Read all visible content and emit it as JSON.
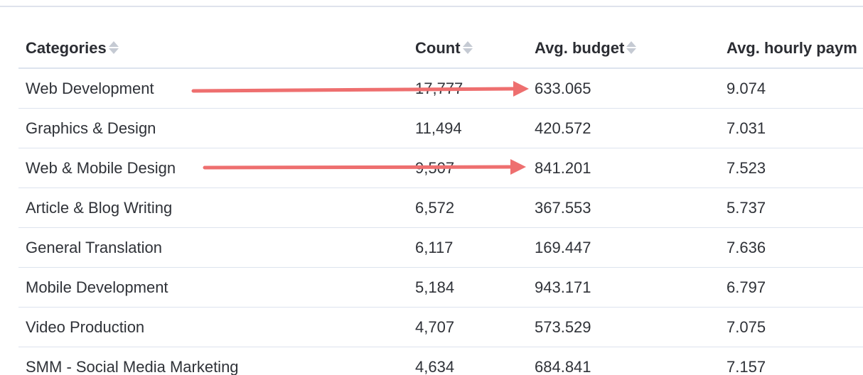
{
  "table": {
    "headers": {
      "categories": "Categories",
      "count": "Count",
      "avg_budget": "Avg. budget",
      "avg_hourly": "Avg. hourly paym"
    },
    "rows": [
      {
        "category": "Web Development",
        "count": "17,777",
        "avg_budget": "633.065",
        "avg_hourly": "9.074"
      },
      {
        "category": "Graphics & Design",
        "count": "11,494",
        "avg_budget": "420.572",
        "avg_hourly": "7.031"
      },
      {
        "category": "Web & Mobile Design",
        "count": "9,507",
        "avg_budget": "841.201",
        "avg_hourly": "7.523"
      },
      {
        "category": "Article & Blog Writing",
        "count": "6,572",
        "avg_budget": "367.553",
        "avg_hourly": "5.737"
      },
      {
        "category": "General Translation",
        "count": "6,117",
        "avg_budget": "169.447",
        "avg_hourly": "7.636"
      },
      {
        "category": "Mobile Development",
        "count": "5,184",
        "avg_budget": "943.171",
        "avg_hourly": "6.797"
      },
      {
        "category": "Video Production",
        "count": "4,707",
        "avg_budget": "573.529",
        "avg_hourly": "7.075"
      },
      {
        "category": "SMM - Social Media Marketing",
        "count": "4,634",
        "avg_budget": "684.841",
        "avg_hourly": "7.157"
      }
    ]
  },
  "annotations": {
    "arrow_color": "#ee6f6f",
    "arrows": [
      "row-web-development",
      "row-web-mobile-design"
    ]
  },
  "icons": {
    "sort": "sort-icon"
  }
}
